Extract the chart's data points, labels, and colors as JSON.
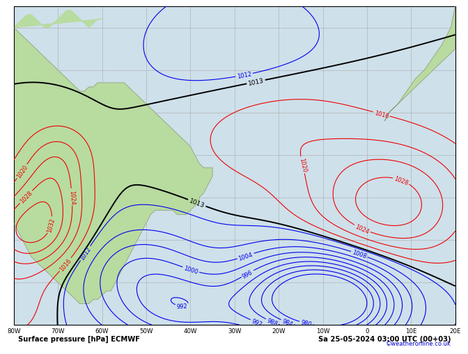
{
  "title_line1": "Surface pressure [hPa] ECMWF",
  "title_line2": "Sa 25-05-2024 03:00 UTC (00+03)",
  "credit": "©weatheronline.co.uk",
  "bg_ocean_color": "#cee0ea",
  "bg_land_color": "#b8dba0",
  "grid_color": "#aaaaaa",
  "lon_min": -80,
  "lon_max": 20,
  "lat_min": -60,
  "lat_max": 15,
  "blue_contour_color": "#0000ee",
  "red_contour_color": "#ee0000",
  "black_contour_color": "#000000",
  "xlabel_ticks": [
    "80W",
    "70W",
    "60W",
    "50W",
    "40W",
    "30W",
    "20W",
    "10W",
    "0",
    "10E",
    "20E"
  ],
  "xlabel_vals": [
    -80,
    -70,
    -60,
    -50,
    -40,
    -30,
    -20,
    -10,
    0,
    10,
    20
  ],
  "bottom_bar_color": "#ffffff"
}
